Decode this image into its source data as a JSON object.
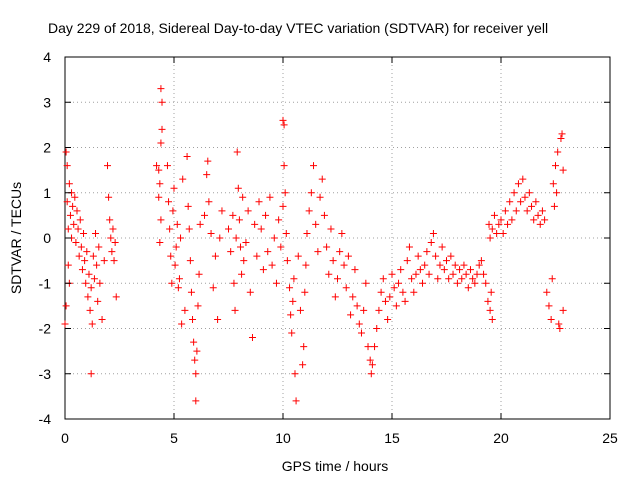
{
  "chart_data": {
    "type": "scatter",
    "title": "Day 229 of 2018, Sidereal Day-to-day VTEC variation (SDTVAR) for receiver yell",
    "xlabel": "GPS time / hours",
    "ylabel": "SDTVAR / TECUs",
    "xlim": [
      0,
      25
    ],
    "ylim": [
      -4,
      4
    ],
    "xticks": [
      "0",
      "5",
      "10",
      "15",
      "20",
      "25"
    ],
    "yticks": [
      "-4",
      "-3",
      "-2",
      "-1",
      "0",
      "1",
      "2",
      "3",
      "4"
    ],
    "grid": true,
    "marker": "+",
    "colors": {
      "points": "#ff0000",
      "grid": "#a0a0a0",
      "frame": "#000000"
    },
    "series": [
      {
        "name": "SDTVAR",
        "points": [
          [
            0.0,
            -1.9
          ],
          [
            0.05,
            -1.5
          ],
          [
            0.05,
            1.9
          ],
          [
            0.1,
            1.6
          ],
          [
            0.1,
            0.8
          ],
          [
            0.15,
            0.2
          ],
          [
            0.15,
            -0.6
          ],
          [
            0.2,
            1.2
          ],
          [
            0.2,
            -1.0
          ],
          [
            0.25,
            0.5
          ],
          [
            0.3,
            1.0
          ],
          [
            0.3,
            0.0
          ],
          [
            0.35,
            0.7
          ],
          [
            0.4,
            0.3
          ],
          [
            0.45,
            0.9
          ],
          [
            0.5,
            -0.1
          ],
          [
            0.55,
            0.6
          ],
          [
            0.6,
            0.2
          ],
          [
            0.65,
            -0.4
          ],
          [
            0.7,
            0.4
          ],
          [
            0.75,
            -0.2
          ],
          [
            0.8,
            -0.7
          ],
          [
            0.85,
            0.1
          ],
          [
            0.9,
            -0.5
          ],
          [
            0.95,
            -1.0
          ],
          [
            1.0,
            -0.3
          ],
          [
            1.05,
            -1.3
          ],
          [
            1.1,
            -0.8
          ],
          [
            1.15,
            -1.6
          ],
          [
            1.2,
            -1.1
          ],
          [
            1.25,
            -1.9
          ],
          [
            1.3,
            -0.4
          ],
          [
            1.35,
            -0.9
          ],
          [
            1.4,
            0.1
          ],
          [
            1.45,
            -0.6
          ],
          [
            1.5,
            -1.4
          ],
          [
            1.55,
            -0.2
          ],
          [
            1.6,
            -1.0
          ],
          [
            1.7,
            -1.8
          ],
          [
            1.8,
            -0.5
          ],
          [
            1.2,
            -3.0
          ],
          [
            1.95,
            1.6
          ],
          [
            2.0,
            0.9
          ],
          [
            2.05,
            0.4
          ],
          [
            2.1,
            0.0
          ],
          [
            2.15,
            -0.3
          ],
          [
            2.2,
            0.2
          ],
          [
            2.25,
            -0.5
          ],
          [
            2.3,
            -0.1
          ],
          [
            2.35,
            -1.3
          ],
          [
            4.2,
            1.6
          ],
          [
            4.3,
            0.9
          ],
          [
            4.35,
            1.2
          ],
          [
            4.4,
            2.1
          ],
          [
            4.45,
            2.4
          ],
          [
            4.4,
            3.3
          ],
          [
            4.45,
            3.0
          ],
          [
            4.4,
            0.4
          ],
          [
            4.35,
            -0.1
          ],
          [
            4.3,
            1.5
          ],
          [
            4.7,
            1.6
          ],
          [
            4.75,
            0.8
          ],
          [
            4.8,
            0.2
          ],
          [
            4.85,
            -0.4
          ],
          [
            4.9,
            -1.0
          ],
          [
            4.95,
            0.6
          ],
          [
            5.0,
            1.1
          ],
          [
            5.05,
            -0.6
          ],
          [
            5.1,
            -0.2
          ],
          [
            5.15,
            0.3
          ],
          [
            5.2,
            -1.1
          ],
          [
            5.25,
            -0.9
          ],
          [
            5.3,
            0.0
          ],
          [
            5.35,
            -1.9
          ],
          [
            5.4,
            1.3
          ],
          [
            5.5,
            -1.6
          ],
          [
            5.6,
            1.8
          ],
          [
            5.65,
            0.7
          ],
          [
            5.7,
            0.2
          ],
          [
            5.75,
            -0.5
          ],
          [
            5.8,
            -1.2
          ],
          [
            5.85,
            -1.8
          ],
          [
            5.9,
            -2.3
          ],
          [
            5.95,
            -2.7
          ],
          [
            6.0,
            -3.0
          ],
          [
            6.05,
            -2.5
          ],
          [
            6.1,
            -1.5
          ],
          [
            6.0,
            -3.6
          ],
          [
            6.15,
            -0.8
          ],
          [
            6.2,
            0.3
          ],
          [
            6.4,
            0.5
          ],
          [
            6.5,
            1.4
          ],
          [
            6.55,
            1.7
          ],
          [
            6.6,
            0.8
          ],
          [
            6.7,
            0.1
          ],
          [
            6.8,
            -1.1
          ],
          [
            6.9,
            -0.4
          ],
          [
            7.0,
            -1.8
          ],
          [
            7.1,
            0.0
          ],
          [
            7.2,
            0.6
          ],
          [
            7.5,
            0.2
          ],
          [
            7.6,
            -0.3
          ],
          [
            7.7,
            0.5
          ],
          [
            7.75,
            -1.0
          ],
          [
            7.8,
            -1.6
          ],
          [
            7.85,
            0.0
          ],
          [
            7.9,
            1.9
          ],
          [
            7.95,
            1.1
          ],
          [
            8.0,
            0.4
          ],
          [
            8.05,
            -0.2
          ],
          [
            8.1,
            -0.8
          ],
          [
            8.15,
            0.9
          ],
          [
            8.2,
            -0.5
          ],
          [
            8.3,
            -0.1
          ],
          [
            8.4,
            0.6
          ],
          [
            8.5,
            -1.2
          ],
          [
            8.6,
            -2.2
          ],
          [
            8.7,
            0.3
          ],
          [
            8.8,
            -0.4
          ],
          [
            8.9,
            0.8
          ],
          [
            9.0,
            0.2
          ],
          [
            9.1,
            -0.7
          ],
          [
            9.2,
            0.5
          ],
          [
            9.3,
            -0.3
          ],
          [
            9.4,
            0.9
          ],
          [
            9.5,
            -0.6
          ],
          [
            9.6,
            0.0
          ],
          [
            9.7,
            -1.0
          ],
          [
            9.8,
            0.4
          ],
          [
            9.9,
            -0.2
          ],
          [
            10.0,
            0.7
          ],
          [
            10.0,
            2.6
          ],
          [
            10.05,
            2.5
          ],
          [
            10.05,
            1.6
          ],
          [
            10.1,
            1.0
          ],
          [
            10.15,
            0.1
          ],
          [
            10.2,
            -0.5
          ],
          [
            10.3,
            -1.1
          ],
          [
            10.35,
            -1.7
          ],
          [
            10.4,
            -2.1
          ],
          [
            10.45,
            -1.4
          ],
          [
            10.5,
            -0.9
          ],
          [
            10.55,
            -3.0
          ],
          [
            10.6,
            -3.6
          ],
          [
            10.7,
            -0.4
          ],
          [
            10.8,
            -1.6
          ],
          [
            10.9,
            -2.8
          ],
          [
            10.95,
            -2.4
          ],
          [
            11.0,
            -1.2
          ],
          [
            11.05,
            -0.6
          ],
          [
            11.1,
            0.1
          ],
          [
            11.2,
            0.6
          ],
          [
            11.3,
            1.0
          ],
          [
            11.4,
            1.6
          ],
          [
            11.5,
            0.3
          ],
          [
            11.6,
            -0.3
          ],
          [
            11.7,
            0.9
          ],
          [
            11.8,
            1.3
          ],
          [
            11.9,
            0.5
          ],
          [
            12.0,
            -0.2
          ],
          [
            12.1,
            -0.8
          ],
          [
            12.2,
            0.2
          ],
          [
            12.3,
            -0.5
          ],
          [
            12.4,
            -1.3
          ],
          [
            12.5,
            -0.9
          ],
          [
            12.6,
            -0.3
          ],
          [
            12.7,
            0.1
          ],
          [
            12.8,
            -0.6
          ],
          [
            12.9,
            -1.1
          ],
          [
            13.0,
            -0.4
          ],
          [
            13.1,
            -1.7
          ],
          [
            13.2,
            -1.3
          ],
          [
            13.3,
            -0.7
          ],
          [
            13.4,
            -1.5
          ],
          [
            13.5,
            -1.9
          ],
          [
            13.6,
            -2.1
          ],
          [
            13.7,
            -1.6
          ],
          [
            13.8,
            -1.0
          ],
          [
            13.9,
            -2.4
          ],
          [
            14.0,
            -2.7
          ],
          [
            14.05,
            -3.0
          ],
          [
            14.1,
            -2.8
          ],
          [
            14.2,
            -2.4
          ],
          [
            14.3,
            -2.0
          ],
          [
            14.4,
            -1.6
          ],
          [
            14.5,
            -1.2
          ],
          [
            14.6,
            -0.9
          ],
          [
            14.7,
            -1.4
          ],
          [
            14.8,
            -1.8
          ],
          [
            14.9,
            -1.3
          ],
          [
            15.0,
            -0.8
          ],
          [
            15.1,
            -1.1
          ],
          [
            15.2,
            -1.5
          ],
          [
            15.3,
            -1.0
          ],
          [
            15.4,
            -0.7
          ],
          [
            15.5,
            -1.2
          ],
          [
            15.6,
            -1.4
          ],
          [
            15.7,
            -0.5
          ],
          [
            15.8,
            -0.2
          ],
          [
            15.9,
            -0.9
          ],
          [
            16.0,
            -1.2
          ],
          [
            16.1,
            -0.8
          ],
          [
            16.2,
            -0.4
          ],
          [
            16.3,
            -0.7
          ],
          [
            16.4,
            -1.0
          ],
          [
            16.5,
            -0.6
          ],
          [
            16.6,
            -0.3
          ],
          [
            16.7,
            -0.8
          ],
          [
            16.8,
            -0.1
          ],
          [
            16.9,
            0.1
          ],
          [
            17.0,
            -0.4
          ],
          [
            17.1,
            -0.9
          ],
          [
            17.2,
            -0.6
          ],
          [
            17.3,
            -0.2
          ],
          [
            17.4,
            -0.7
          ],
          [
            17.5,
            -0.5
          ],
          [
            17.6,
            -0.9
          ],
          [
            17.7,
            -0.4
          ],
          [
            17.8,
            -0.8
          ],
          [
            17.9,
            -0.6
          ],
          [
            18.0,
            -1.0
          ],
          [
            18.1,
            -0.7
          ],
          [
            18.2,
            -0.9
          ],
          [
            18.3,
            -0.6
          ],
          [
            18.4,
            -0.8
          ],
          [
            18.5,
            -1.1
          ],
          [
            18.6,
            -0.7
          ],
          [
            18.7,
            -0.9
          ],
          [
            18.8,
            -1.0
          ],
          [
            18.9,
            -0.8
          ],
          [
            19.0,
            -0.6
          ],
          [
            19.1,
            -0.5
          ],
          [
            19.2,
            -0.8
          ],
          [
            19.3,
            -1.0
          ],
          [
            19.4,
            -1.4
          ],
          [
            19.5,
            -1.6
          ],
          [
            19.6,
            -1.8
          ],
          [
            19.55,
            -1.2
          ],
          [
            19.45,
            0.3
          ],
          [
            19.5,
            0.0
          ],
          [
            19.6,
            0.2
          ],
          [
            19.7,
            0.5
          ],
          [
            19.8,
            0.1
          ],
          [
            19.9,
            0.3
          ],
          [
            20.0,
            0.4
          ],
          [
            20.1,
            0.1
          ],
          [
            20.2,
            0.6
          ],
          [
            20.3,
            0.3
          ],
          [
            20.4,
            0.8
          ],
          [
            20.5,
            0.4
          ],
          [
            20.6,
            1.0
          ],
          [
            20.7,
            0.6
          ],
          [
            20.8,
            1.2
          ],
          [
            20.9,
            0.8
          ],
          [
            21.0,
            1.3
          ],
          [
            21.1,
            0.9
          ],
          [
            21.2,
            0.6
          ],
          [
            21.3,
            1.0
          ],
          [
            21.4,
            0.7
          ],
          [
            21.5,
            0.4
          ],
          [
            21.6,
            0.8
          ],
          [
            21.7,
            0.5
          ],
          [
            21.8,
            0.3
          ],
          [
            21.9,
            0.6
          ],
          [
            22.0,
            0.4
          ],
          [
            22.1,
            -1.2
          ],
          [
            22.2,
            -1.5
          ],
          [
            22.3,
            -1.8
          ],
          [
            22.35,
            -0.9
          ],
          [
            22.4,
            1.2
          ],
          [
            22.45,
            0.7
          ],
          [
            22.5,
            1.6
          ],
          [
            22.55,
            1.0
          ],
          [
            22.6,
            1.9
          ],
          [
            22.65,
            -1.9
          ],
          [
            22.7,
            -2.0
          ],
          [
            22.75,
            2.2
          ],
          [
            22.8,
            2.3
          ],
          [
            22.85,
            1.5
          ],
          [
            22.85,
            -1.6
          ]
        ]
      }
    ]
  }
}
